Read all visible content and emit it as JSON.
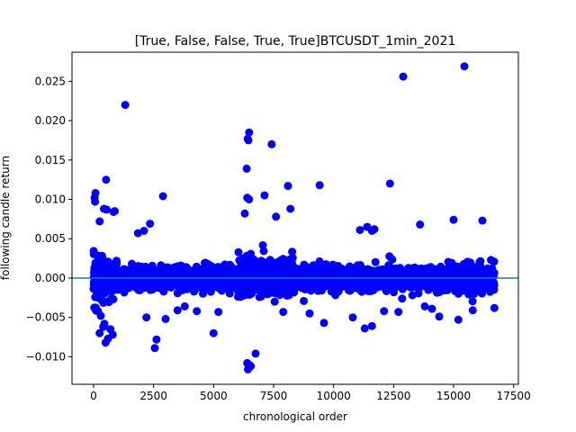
{
  "chart_data": {
    "type": "scatter",
    "title": "[True, False, False, True, True]BTCUSDT_1min_2021",
    "xlabel": "chronological order",
    "ylabel": "following candle return",
    "xlim": [
      -900,
      17700
    ],
    "ylim": [
      -0.0135,
      0.0287
    ],
    "x_ticks": [
      0,
      2500,
      5000,
      7500,
      10000,
      12500,
      15000,
      17500
    ],
    "x_tick_labels": [
      "0",
      "2500",
      "5000",
      "7500",
      "10000",
      "12500",
      "15000",
      "17500"
    ],
    "y_ticks": [
      -0.01,
      -0.005,
      0.0,
      0.005,
      0.01,
      0.015,
      0.02,
      0.025
    ],
    "y_tick_labels": [
      "−0.010",
      "−0.005",
      "0.000",
      "0.005",
      "0.010",
      "0.015",
      "0.020",
      "0.025"
    ],
    "grid": false,
    "marker_color": "#0000ff",
    "hline": {
      "y": 0.0,
      "color": "#1f77b4"
    },
    "n_points": 16700,
    "series": [
      {
        "x": [
          1320,
          12900,
          15450,
          6480,
          6420,
          6450,
          7420,
          6380,
          520,
          80,
          2890,
          9420,
          12350,
          8100,
          6400,
          6480,
          7120,
          60,
          40,
          880,
          830,
          540,
          430,
          2350,
          250,
          1850,
          2100,
          8200,
          6300,
          7600,
          15000,
          16200,
          13600,
          11100,
          11400,
          11700,
          11600,
          2550,
          2620,
          6430,
          6520,
          6550,
          6400,
          500,
          600,
          5000,
          9600,
          11300,
          11600,
          14400,
          15200,
          12700,
          800,
          250,
          3500,
          7900,
          3800,
          5200,
          3000,
          6750,
          10800,
          12100,
          16700,
          2200,
          300,
          400,
          450,
          700,
          4300,
          9000,
          14100,
          13800,
          15800
        ],
        "y": [
          0.022,
          0.0256,
          0.0269,
          0.0185,
          0.0177,
          0.0175,
          0.017,
          0.0139,
          0.0125,
          0.0108,
          0.0104,
          0.0118,
          0.012,
          0.0117,
          0.0102,
          0.01,
          0.0105,
          0.0097,
          0.0102,
          0.0085,
          0.0084,
          0.0087,
          0.0088,
          0.0069,
          0.0072,
          0.0057,
          0.006,
          0.0088,
          0.0082,
          0.0078,
          0.0074,
          0.0073,
          0.0068,
          0.0061,
          0.0065,
          0.0062,
          0.006,
          -0.0089,
          -0.0078,
          -0.0116,
          -0.0111,
          -0.0112,
          -0.0108,
          -0.0082,
          -0.0077,
          -0.007,
          -0.0057,
          -0.0064,
          -0.0061,
          -0.0049,
          -0.0053,
          -0.0043,
          -0.0072,
          -0.007,
          -0.0041,
          -0.0043,
          -0.0036,
          -0.0043,
          -0.0052,
          -0.0096,
          -0.005,
          -0.0042,
          -0.0038,
          -0.005,
          -0.0048,
          -0.0062,
          -0.0058,
          -0.0065,
          -0.0042,
          -0.0045,
          -0.0039,
          -0.0036,
          -0.0041
        ]
      }
    ]
  }
}
